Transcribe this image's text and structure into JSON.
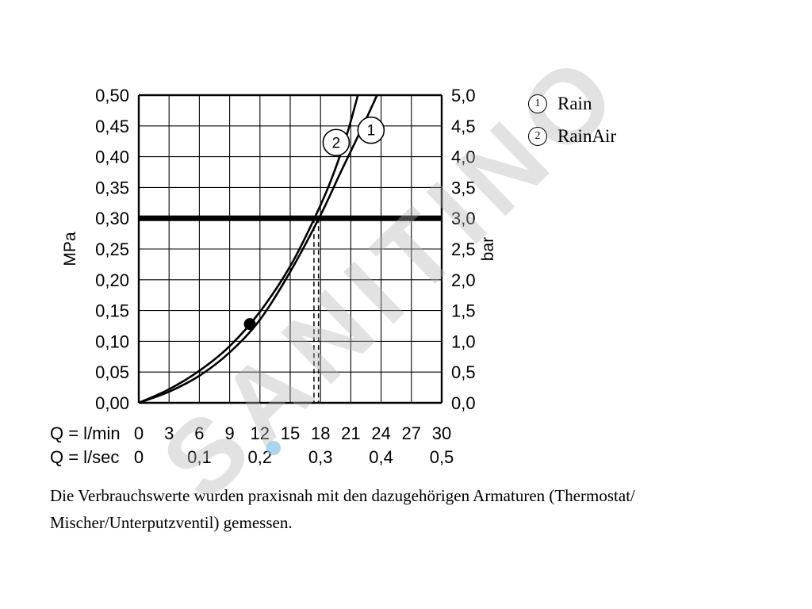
{
  "watermark": {
    "text": "SANITINO"
  },
  "legend": {
    "items": [
      {
        "symbol": "1",
        "label": "Rain"
      },
      {
        "symbol": "2",
        "label": "RainAir"
      }
    ]
  },
  "caption": {
    "line1": "Die Verbrauchswerte wurden praxisnah mit den dazugehörigen Armaturen (Thermostat/",
    "line2": "Mischer/Unterputzventil) gemessen."
  },
  "chart_data": {
    "type": "line",
    "title": "",
    "xlabel_primary": "Q = l/min",
    "xlabel_secondary": "Q = l/sec",
    "ylabel_left": "MPa",
    "ylabel_right": "bar",
    "xlim": [
      0,
      30
    ],
    "ylim": [
      0,
      0.5
    ],
    "grid": true,
    "x_ticks_lmin": [
      0,
      3,
      6,
      9,
      12,
      15,
      18,
      21,
      24,
      27,
      30
    ],
    "x_ticks_lsec": {
      "labels": [
        "0",
        "0,1",
        "0,2",
        "0,3",
        "0,4",
        "0,5"
      ],
      "positions": [
        0,
        6,
        12,
        18,
        24,
        30
      ]
    },
    "y_ticks_mpa": [
      "0,00",
      "0,05",
      "0,10",
      "0,15",
      "0,20",
      "0,25",
      "0,30",
      "0,35",
      "0,40",
      "0,45",
      "0,50"
    ],
    "y_ticks_bar": [
      "0,0",
      "0,5",
      "1,0",
      "1,5",
      "2,0",
      "2,5",
      "3,0",
      "3,5",
      "4,0",
      "4,5",
      "5,0"
    ],
    "reference_line_mpa": 0.3,
    "dashed_guides_lmin": [
      17.35,
      17.8
    ],
    "marker_point": {
      "lmin": 11,
      "mpa": 0.128
    },
    "series": [
      {
        "id": "1",
        "name": "Rain",
        "points": [
          [
            0,
            0
          ],
          [
            3,
            0.018
          ],
          [
            6,
            0.044
          ],
          [
            9,
            0.082
          ],
          [
            12,
            0.135
          ],
          [
            15,
            0.213
          ],
          [
            18,
            0.305
          ],
          [
            20,
            0.375
          ],
          [
            22,
            0.443
          ],
          [
            23.6,
            0.5
          ]
        ],
        "label_pos": [
          23.0,
          0.443
        ]
      },
      {
        "id": "2",
        "name": "RainAir",
        "points": [
          [
            0,
            0
          ],
          [
            3,
            0.022
          ],
          [
            6,
            0.052
          ],
          [
            9,
            0.092
          ],
          [
            12,
            0.148
          ],
          [
            15,
            0.222
          ],
          [
            17.4,
            0.3
          ],
          [
            19,
            0.36
          ],
          [
            20.5,
            0.43
          ],
          [
            21.7,
            0.5
          ]
        ],
        "label_pos": [
          19.55,
          0.423
        ]
      }
    ]
  }
}
